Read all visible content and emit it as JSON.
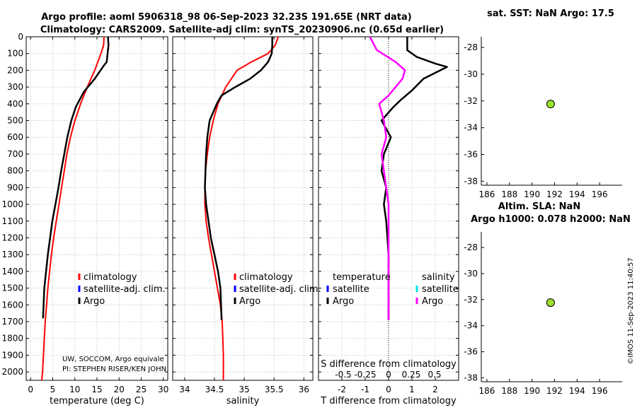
{
  "title_line1": "Argo profile: aoml 5906318_98 06-Sep-2023 32.23S 191.65E (NRT data)",
  "title_line2": "Climatology: CARS2009. Satellite-adj clim: synTS_20230906.nc (0.65d earlier)",
  "credit_line1": "UW, SOCCOM, Argo equivale",
  "credit_line2": "PI: STEPHEN RISER/KEN JOHN",
  "imos_stamp": "©IMOS 11-Sep-2023 11:40:57",
  "colors": {
    "climatology": "#ff0000",
    "satellite": "#0000ff",
    "argo": "#000000",
    "argo_salinity": "#ff00ff",
    "satellite_salinity": "#00e5ee",
    "marker": "#9be22d"
  },
  "legend": {
    "climatology": "climatology",
    "satellite": "satellite-adj. clim.",
    "argo": "Argo",
    "diff_temperature": "temperature",
    "diff_salinity": "salinity",
    "diff_satellite": "satellite",
    "diff_argo": "Argo"
  },
  "chart_data": [
    {
      "type": "line",
      "title": "",
      "xlabel": "temperature (deg C)",
      "ylabel": "",
      "xlim": [
        -1,
        31
      ],
      "ylim": [
        2050,
        0
      ],
      "xticks": [
        "0",
        "5",
        "10",
        "15",
        "20",
        "25",
        "30"
      ],
      "yticks": [
        "0",
        "100",
        "200",
        "300",
        "400",
        "500",
        "600",
        "700",
        "800",
        "900",
        "1000",
        "1100",
        "1200",
        "1300",
        "1400",
        "1500",
        "1600",
        "1700",
        "1800",
        "1900",
        "2000"
      ],
      "series": [
        {
          "name": "climatology",
          "x": [
            16.6,
            16.5,
            15.9,
            14.5,
            12.8,
            11.3,
            10.0,
            9.0,
            8.2,
            7.6,
            7.0,
            6.4,
            5.8,
            5.2,
            4.7,
            4.3,
            3.9,
            3.6,
            3.3,
            3.1,
            2.9,
            2.7,
            2.5
          ],
          "y": [
            0,
            50,
            100,
            200,
            300,
            400,
            500,
            600,
            700,
            800,
            900,
            1000,
            1100,
            1200,
            1300,
            1400,
            1500,
            1600,
            1700,
            1800,
            1900,
            2000,
            2050
          ]
        },
        {
          "name": "Argo",
          "x": [
            17.5,
            17.6,
            17.4,
            17.2,
            16.6,
            14.5,
            12.0,
            10.2,
            9.2,
            8.3,
            7.6,
            6.9,
            6.3,
            5.6,
            4.9,
            4.4,
            3.9,
            3.5,
            3.1,
            2.8
          ],
          "y": [
            0,
            50,
            100,
            150,
            170,
            250,
            330,
            420,
            500,
            600,
            700,
            800,
            900,
            1000,
            1100,
            1200,
            1300,
            1400,
            1500,
            1680
          ]
        }
      ]
    },
    {
      "type": "line",
      "title": "",
      "xlabel": "salinity",
      "ylabel": "",
      "xlim": [
        33.8,
        36.15
      ],
      "xticks": [
        "34",
        "34.5",
        "35",
        "35.5",
        "36"
      ],
      "series": [
        {
          "name": "climatology",
          "x": [
            35.57,
            35.52,
            35.4,
            35.12,
            34.88,
            34.69,
            34.56,
            34.48,
            34.42,
            34.38,
            34.35,
            34.34,
            34.34,
            34.36,
            34.4,
            34.45,
            34.5,
            34.55,
            34.6,
            34.63,
            34.64,
            34.65,
            34.65,
            34.65,
            34.65
          ],
          "y": [
            0,
            50,
            100,
            150,
            200,
            300,
            400,
            500,
            600,
            700,
            800,
            900,
            1000,
            1100,
            1200,
            1300,
            1400,
            1500,
            1600,
            1700,
            1800,
            1900,
            2000,
            2040,
            2050
          ]
        },
        {
          "name": "Argo",
          "x": [
            35.47,
            35.47,
            35.46,
            35.4,
            35.28,
            35.1,
            34.85,
            34.62,
            34.54,
            34.48,
            34.42,
            34.38,
            34.36,
            34.35,
            34.34,
            34.36,
            34.4,
            34.44,
            34.5,
            34.56,
            34.6,
            34.62
          ],
          "y": [
            0,
            50,
            100,
            150,
            200,
            250,
            300,
            350,
            400,
            450,
            500,
            600,
            700,
            800,
            900,
            1000,
            1100,
            1200,
            1300,
            1400,
            1500,
            1690
          ]
        }
      ]
    },
    {
      "type": "line",
      "title": "",
      "xlabel": "T difference from climatology",
      "ylabel": "",
      "xlim": [
        -3,
        3
      ],
      "xticks": [
        "-2",
        "-1",
        "0",
        "1",
        "2"
      ],
      "x2label": "S difference from climatology",
      "x2ticks": [
        "-0.5",
        "-0.25",
        "0",
        "0.25",
        "0.5"
      ],
      "series": [
        {
          "name": "temperature Argo",
          "x": [
            0.8,
            0.8,
            1.2,
            2.0,
            2.5,
            1.5,
            1.0,
            0.5,
            0.2,
            -0.3,
            0.1,
            -0.2,
            -0.3,
            -0.1,
            -0.2,
            -0.1,
            0,
            0,
            0,
            0
          ],
          "y": [
            0,
            80,
            120,
            160,
            180,
            250,
            320,
            380,
            420,
            500,
            600,
            700,
            800,
            900,
            1000,
            1100,
            1300,
            1500,
            1600,
            1690
          ]
        },
        {
          "name": "salinity Argo",
          "x": [
            -0.8,
            -0.5,
            0.3,
            0.7,
            0.6,
            0.3,
            0.0,
            -0.4,
            -0.2,
            -0.1,
            -0.3,
            0,
            0,
            0,
            0
          ],
          "y": [
            0,
            80,
            150,
            200,
            250,
            300,
            350,
            400,
            500,
            600,
            700,
            1000,
            1300,
            1600,
            1690
          ]
        }
      ]
    },
    {
      "type": "scatter",
      "title": "sat. SST: NaN Argo: 17.5",
      "xlim": [
        185.5,
        198
      ],
      "ylim": [
        -27.2,
        -38.3
      ],
      "xticks": [
        "186",
        "188",
        "190",
        "192",
        "194",
        "196"
      ],
      "yticks": [
        "-28",
        "-30",
        "-32",
        "-34",
        "-36",
        "-38"
      ],
      "points": [
        {
          "x": 191.65,
          "y": -32.23
        }
      ]
    },
    {
      "type": "scatter",
      "title": "Altim. SLA: NaN",
      "title2": "Argo h1000: 0.078 h2000: NaN",
      "xlim": [
        185.5,
        198
      ],
      "ylim": [
        -26.8,
        -38.3
      ],
      "xticks": [
        "186",
        "188",
        "190",
        "192",
        "194",
        "196"
      ],
      "yticks": [
        "-28",
        "-30",
        "-32",
        "-34",
        "-36",
        "-38"
      ],
      "points": [
        {
          "x": 191.65,
          "y": -32.23
        }
      ]
    }
  ]
}
